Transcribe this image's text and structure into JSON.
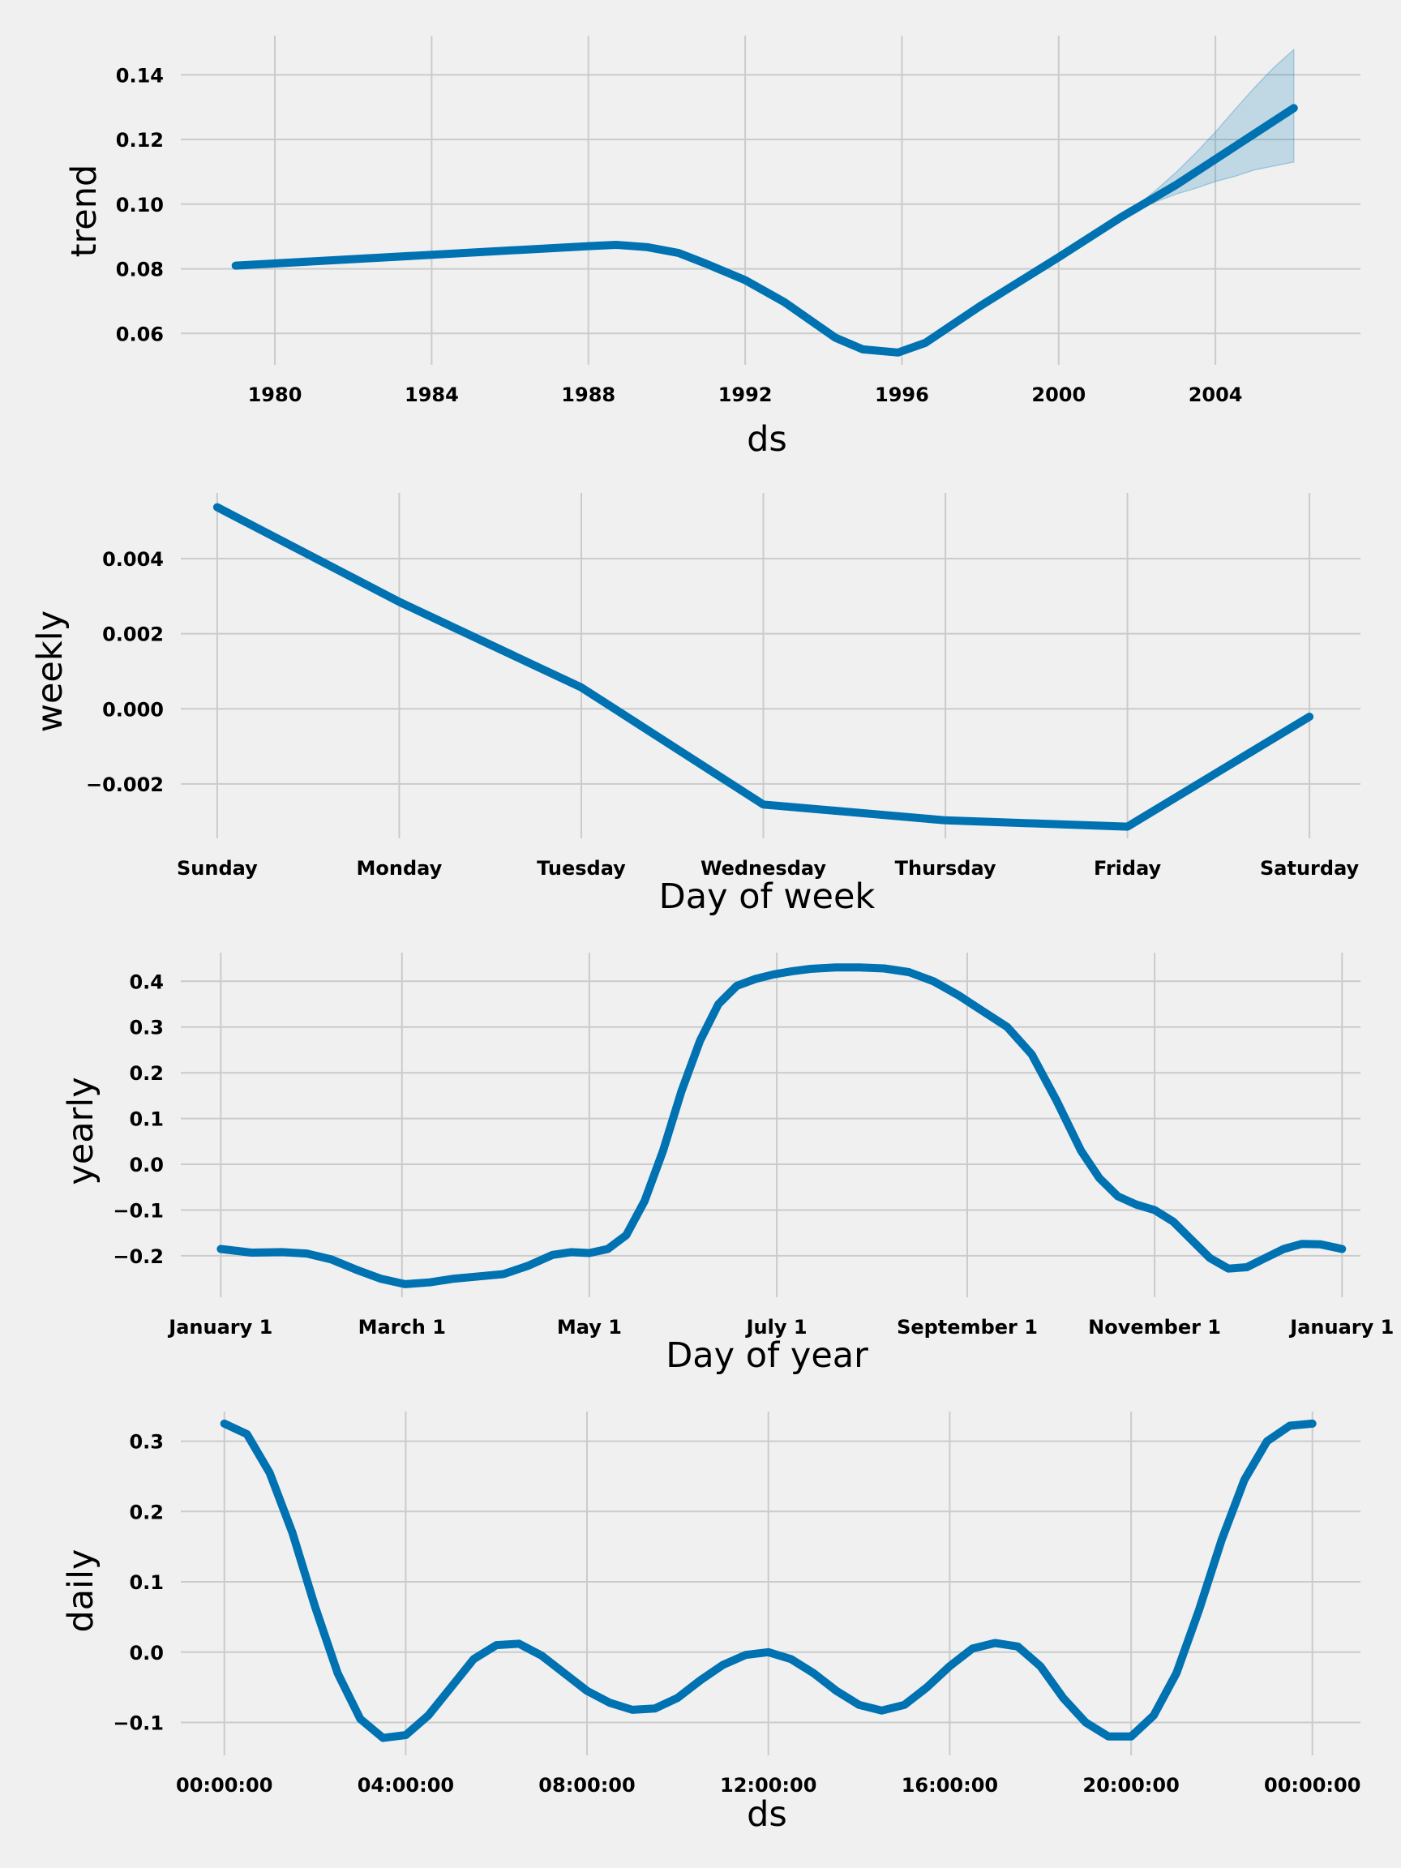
{
  "chart_data": [
    {
      "type": "line",
      "xlabel": "ds",
      "ylabel": "trend",
      "x_type": "year",
      "xlim": [
        1977.6,
        2007.7
      ],
      "ylim": [
        0.0503,
        0.1521
      ],
      "x_ticks": [
        1980,
        1984,
        1988,
        1992,
        1996,
        2000,
        2004
      ],
      "x_tick_labels": [
        "1980",
        "1984",
        "1988",
        "1992",
        "1996",
        "2000",
        "2004"
      ],
      "y_ticks": [
        0.06,
        0.08,
        0.1,
        0.12,
        0.14
      ],
      "y_tick_labels": [
        "0.06",
        "0.08",
        "0.10",
        "0.12",
        "0.14"
      ],
      "grid": true,
      "series": [
        {
          "x": [
            1979.0,
            1988.0,
            1988.7,
            1989.5,
            1990.3,
            1991.0,
            1992.0,
            1993.0,
            1994.3,
            1995.0,
            1995.9,
            1996.6,
            1998.0,
            2000.0,
            2001.6,
            2003.0,
            2006.0
          ],
          "values": [
            0.081,
            0.087,
            0.0874,
            0.0867,
            0.0849,
            0.0816,
            0.0765,
            0.0697,
            0.0587,
            0.0551,
            0.0541,
            0.0571,
            0.0685,
            0.0836,
            0.096,
            0.106,
            0.1297
          ]
        }
      ],
      "uncertainty_band": {
        "x": [
          2001.6,
          2002.0,
          2002.5,
          2003.0,
          2003.5,
          2004.0,
          2004.5,
          2005.0,
          2005.5,
          2006.0
        ],
        "upper": [
          0.096,
          0.0996,
          0.1045,
          0.1099,
          0.1159,
          0.1223,
          0.1293,
          0.1361,
          0.1424,
          0.1478
        ],
        "lower": [
          0.096,
          0.0981,
          0.1008,
          0.1031,
          0.1049,
          0.107,
          0.1086,
          0.1106,
          0.1118,
          0.113
        ]
      }
    },
    {
      "type": "line",
      "xlabel": "Day of week",
      "ylabel": "weekly",
      "xlim": [
        -0.2,
        6.28
      ],
      "ylim": [
        -0.00345,
        0.00575
      ],
      "x_ticks": [
        0,
        1,
        2,
        3,
        4,
        5,
        6
      ],
      "x_tick_labels": [
        "Sunday",
        "Monday",
        "Tuesday",
        "Wednesday",
        "Thursday",
        "Friday",
        "Saturday"
      ],
      "y_ticks": [
        -0.002,
        0.0,
        0.002,
        0.004
      ],
      "y_tick_labels": [
        "−0.002",
        "0.000",
        "0.002",
        "0.004"
      ],
      "grid": true,
      "series": [
        {
          "x": [
            0,
            1,
            2,
            3,
            4,
            5,
            6
          ],
          "values": [
            0.00537,
            0.00285,
            0.00057,
            -0.00255,
            -0.00297,
            -0.00314,
            -0.00021
          ]
        }
      ]
    },
    {
      "type": "line",
      "xlabel": "Day of year",
      "ylabel": "yearly",
      "x_type": "day_of_year",
      "xlim": [
        -13,
        371
      ],
      "ylim": [
        -0.2905,
        0.4625
      ],
      "x_ticks": [
        0,
        59,
        120,
        181,
        243,
        304,
        365
      ],
      "x_tick_labels": [
        "January 1",
        "March 1",
        "May 1",
        "July 1",
        "September 1",
        "November 1",
        "January 1"
      ],
      "y_ticks": [
        -0.2,
        -0.1,
        0.0,
        0.1,
        0.2,
        0.3,
        0.4
      ],
      "y_tick_labels": [
        "−0.2",
        "−0.1",
        "0.0",
        "0.1",
        "0.2",
        "0.3",
        "0.4"
      ],
      "grid": true,
      "series": [
        {
          "x": [
            0,
            10,
            20,
            28,
            36,
            44,
            52,
            60,
            68,
            76,
            84,
            92,
            100,
            108,
            114,
            120,
            126,
            132,
            138,
            144,
            150,
            156,
            162,
            168,
            174,
            180,
            186,
            192,
            200,
            208,
            216,
            224,
            232,
            240,
            248,
            256,
            264,
            272,
            280,
            286,
            292,
            298,
            304,
            310,
            316,
            322,
            328,
            334,
            340,
            346,
            352,
            358,
            365
          ],
          "values": [
            -0.185,
            -0.193,
            -0.192,
            -0.195,
            -0.208,
            -0.23,
            -0.25,
            -0.262,
            -0.258,
            -0.25,
            -0.245,
            -0.24,
            -0.222,
            -0.198,
            -0.192,
            -0.194,
            -0.185,
            -0.155,
            -0.08,
            0.03,
            0.16,
            0.27,
            0.35,
            0.39,
            0.405,
            0.415,
            0.422,
            0.427,
            0.43,
            0.43,
            0.428,
            0.42,
            0.4,
            0.37,
            0.335,
            0.3,
            0.24,
            0.14,
            0.03,
            -0.03,
            -0.07,
            -0.088,
            -0.1,
            -0.125,
            -0.165,
            -0.205,
            -0.228,
            -0.225,
            -0.205,
            -0.185,
            -0.174,
            -0.175,
            -0.185
          ]
        }
      ]
    },
    {
      "type": "line",
      "xlabel": "ds",
      "ylabel": "daily",
      "x_type": "hours",
      "xlim": [
        -0.96,
        25.06
      ],
      "ylim": [
        -0.1467,
        0.3422
      ],
      "x_ticks": [
        0,
        4,
        8,
        12,
        16,
        20,
        24
      ],
      "x_tick_labels": [
        "00:00:00",
        "04:00:00",
        "08:00:00",
        "12:00:00",
        "16:00:00",
        "20:00:00",
        "00:00:00"
      ],
      "y_ticks": [
        -0.1,
        0.0,
        0.1,
        0.2,
        0.3
      ],
      "y_tick_labels": [
        "−0.1",
        "0.0",
        "0.1",
        "0.2",
        "0.3"
      ],
      "grid": true,
      "series": [
        {
          "x": [
            0,
            0.5,
            1.0,
            1.5,
            2.0,
            2.5,
            3.0,
            3.5,
            4.0,
            4.5,
            5.0,
            5.5,
            6.0,
            6.5,
            7.0,
            7.5,
            8.0,
            8.5,
            9.0,
            9.5,
            10.0,
            10.5,
            11.0,
            11.5,
            12.0,
            12.5,
            13.0,
            13.5,
            14.0,
            14.5,
            15.0,
            15.5,
            16.0,
            16.5,
            17.0,
            17.5,
            18.0,
            18.5,
            19.0,
            19.5,
            20.0,
            20.5,
            21.0,
            21.5,
            22.0,
            22.5,
            23.0,
            23.5,
            24.0
          ],
          "values": [
            0.325,
            0.31,
            0.255,
            0.17,
            0.065,
            -0.03,
            -0.095,
            -0.122,
            -0.118,
            -0.09,
            -0.05,
            -0.01,
            0.01,
            0.012,
            -0.005,
            -0.03,
            -0.055,
            -0.072,
            -0.082,
            -0.08,
            -0.065,
            -0.04,
            -0.018,
            -0.004,
            0.0,
            -0.01,
            -0.03,
            -0.055,
            -0.075,
            -0.083,
            -0.075,
            -0.05,
            -0.02,
            0.005,
            0.013,
            0.008,
            -0.02,
            -0.065,
            -0.1,
            -0.12,
            -0.12,
            -0.09,
            -0.03,
            0.06,
            0.16,
            0.245,
            0.3,
            0.322,
            0.325
          ]
        }
      ]
    }
  ],
  "colors": {
    "background": "#f0f0f0",
    "line": "#0072B2",
    "band": "#0072B2",
    "grid": "#cbcbcb"
  }
}
